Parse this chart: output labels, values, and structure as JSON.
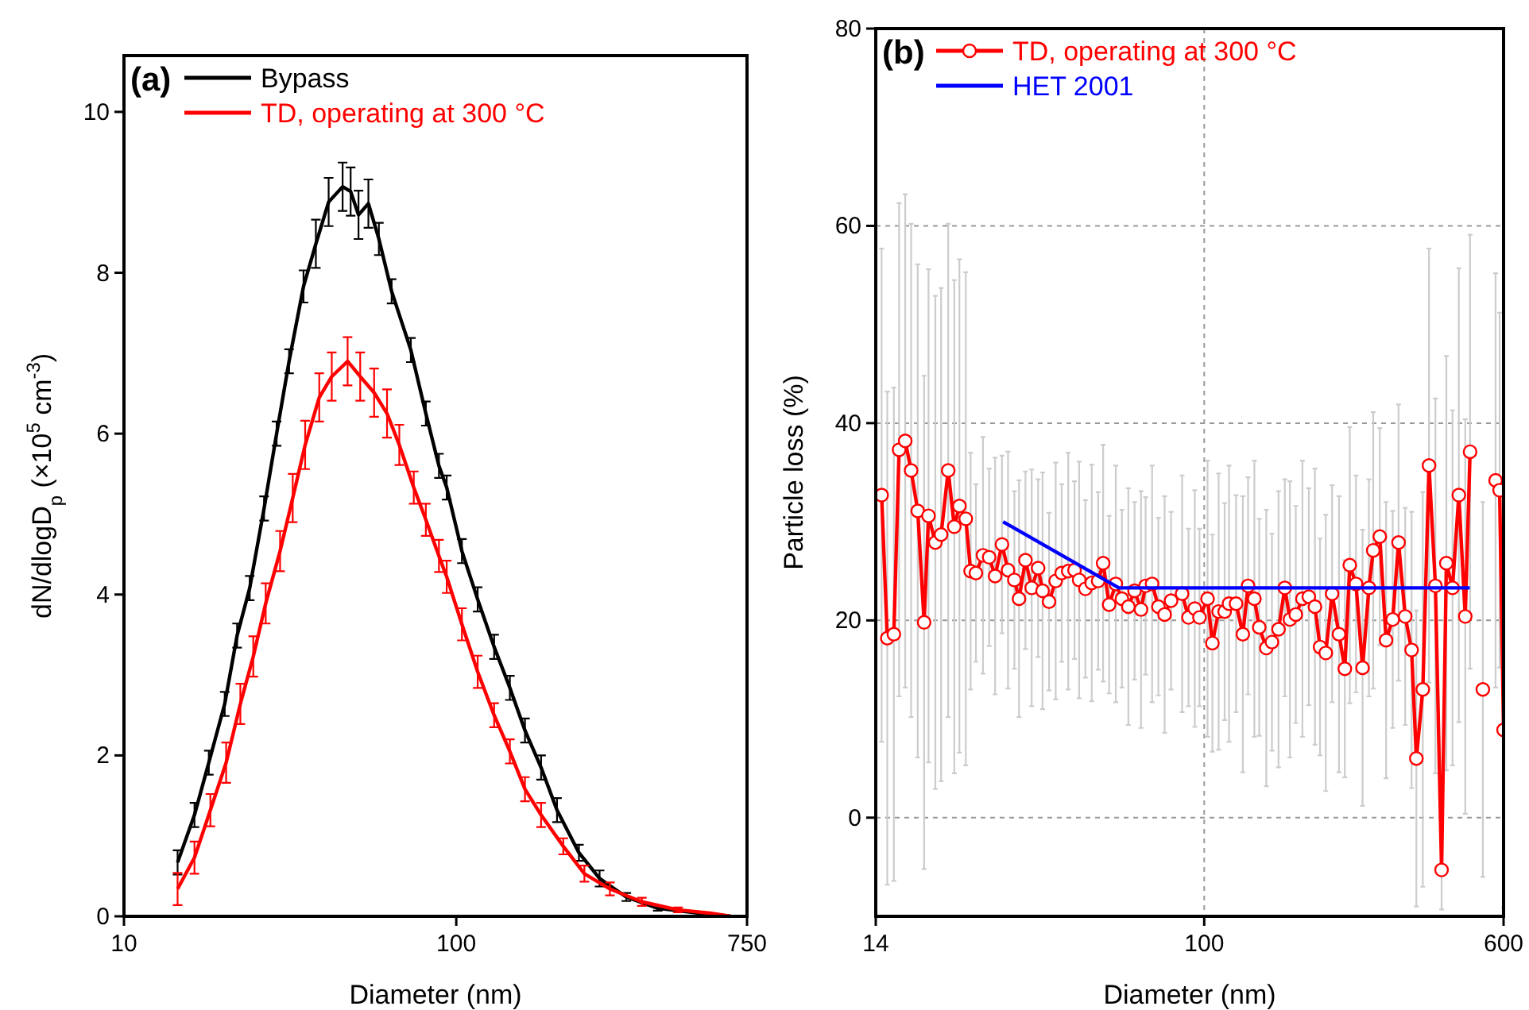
{
  "chart_data": [
    {
      "type": "line",
      "xlabel": "Diameter (nm)",
      "ylabel": "dN/dlogD$_{p}$ (×10$^{5}$ cm$^{-3}$)",
      "log": "x",
      "xlim": [
        10,
        750
      ],
      "xticks": [
        10,
        100,
        750
      ],
      "ylim": [
        0,
        10.7
      ],
      "yticks": [
        0,
        2,
        4,
        6,
        8,
        10
      ],
      "legend": "top left",
      "annotations": [
        "(a)"
      ],
      "series": [
        {
          "name": "Bypass",
          "color": "#000000",
          "x": [
            14.5,
            16.3,
            18,
            20.1,
            21.9,
            23.9,
            26.4,
            28.8,
            31.4,
            34.7,
            37.8,
            41.3,
            45.5,
            48.1,
            50.8,
            54.4,
            58.5,
            63.9,
            73,
            81,
            88.7,
            93.6,
            104,
            116,
            130,
            145,
            161,
            180,
            201,
            234,
            270,
            325,
            404,
            538,
            670
          ],
          "values": [
            0.67,
            1.26,
            1.91,
            2.64,
            3.49,
            4.08,
            5.07,
            6.0,
            6.9,
            7.83,
            8.36,
            8.88,
            9.07,
            9.01,
            8.72,
            8.86,
            8.42,
            7.77,
            7.04,
            6.25,
            5.6,
            5.33,
            4.54,
            3.94,
            3.35,
            2.84,
            2.31,
            1.85,
            1.32,
            0.79,
            0.47,
            0.24,
            0.1,
            0.04,
            0.0
          ],
          "errors": [
            0.15,
            0.15,
            0.15,
            0.15,
            0.15,
            0.15,
            0.15,
            0.15,
            0.15,
            0.2,
            0.3,
            0.3,
            0.3,
            0.3,
            0.3,
            0.3,
            0.2,
            0.15,
            0.15,
            0.15,
            0.15,
            0.15,
            0.15,
            0.15,
            0.15,
            0.15,
            0.15,
            0.15,
            0.15,
            0.1,
            0.1,
            0.05,
            0.03,
            null,
            null
          ]
        },
        {
          "name": "TD, operating at 300 °C",
          "color": "#ff0000",
          "x": [
            14.5,
            16.3,
            18.2,
            20.3,
            22.4,
            24.5,
            26.7,
            29.5,
            32.2,
            35.1,
            38.7,
            42.2,
            47.1,
            51.4,
            56.6,
            61.9,
            67.4,
            74.5,
            81,
            88.7,
            93.6,
            104,
            116,
            130,
            145,
            161,
            180,
            210,
            243,
            290,
            362,
            465,
            580,
            670
          ],
          "values": [
            0.34,
            0.73,
            1.32,
            1.91,
            2.64,
            3.23,
            3.89,
            4.54,
            5.2,
            5.86,
            6.45,
            6.71,
            6.9,
            6.71,
            6.51,
            6.25,
            5.86,
            5.33,
            4.93,
            4.48,
            4.22,
            3.63,
            3.04,
            2.5,
            2.05,
            1.58,
            1.26,
            0.87,
            0.53,
            0.34,
            0.18,
            0.08,
            0.04,
            0.0
          ],
          "errors": [
            0.2,
            0.2,
            0.2,
            0.25,
            0.25,
            0.25,
            0.25,
            0.25,
            0.3,
            0.3,
            0.3,
            0.3,
            0.3,
            0.3,
            0.3,
            0.3,
            0.25,
            0.2,
            0.2,
            0.2,
            0.2,
            0.2,
            0.2,
            0.15,
            0.15,
            0.15,
            0.15,
            0.1,
            0.1,
            0.08,
            0.05,
            0.03,
            null,
            null
          ]
        }
      ]
    },
    {
      "type": "line",
      "xlabel": "Diameter (nm)",
      "ylabel": "Particle loss (%)",
      "log": "x",
      "xlim": [
        14,
        600
      ],
      "xticks": [
        14,
        100,
        600
      ],
      "ylim": [
        -10,
        80
      ],
      "yticks": [
        0,
        20,
        40,
        60,
        80
      ],
      "grid": true,
      "legend": "top left",
      "marker": "circle",
      "annotations": [
        "(b)"
      ],
      "series": [
        {
          "name": "TD, operating at 300 °C",
          "color": "#ff0000",
          "x": [
            14.5,
            15.0,
            15.6,
            16.1,
            16.7,
            17.3,
            18.0,
            18.7,
            19.2,
            20.0,
            20.7,
            21.6,
            22.4,
            23.1,
            24.0,
            24.7,
            25.5,
            26.6,
            27.6,
            28.6,
            29.8,
            30.9,
            32.1,
            33.0,
            34.3,
            35.6,
            37.0,
            38.0,
            39.5,
            41.1,
            42.6,
            44.3,
            46.0,
            47.3,
            49.1,
            51.0,
            53.0,
            54.6,
            56.6,
            58.9,
            61.1,
            63.5,
            65.9,
            68.5,
            70.4,
            73.2,
            76.0,
            78.9,
            82.0,
            87.6,
            91,
            94.5,
            97.2,
            102,
            105,
            109,
            113,
            116,
            121,
            126,
            130,
            135,
            139,
            145,
            150,
            156,
            162,
            167,
            173,
            180,
            187,
            194,
            200,
            207,
            215,
            224,
            232,
            239,
            248,
            258,
            268,
            275,
            286,
            297,
            309,
            320,
            333,
            346,
            356,
            370,
            384,
            399,
            414,
            426,
            442,
            459,
            477,
            491,
            510,
            530,
            550,
            572,
            586,
            600
          ],
          "values": [
            32.7,
            18.2,
            18.6,
            37.3,
            38.2,
            35.2,
            31.1,
            19.8,
            30.6,
            27.9,
            28.7,
            35.2,
            29.5,
            31.6,
            30.3,
            25.0,
            24.8,
            26.6,
            26.4,
            24.5,
            27.7,
            25.1,
            24.1,
            22.2,
            26.1,
            23.3,
            25.3,
            23.0,
            21.9,
            24.0,
            24.8,
            25.0,
            25.1,
            24.1,
            23.2,
            23.8,
            24.0,
            25.8,
            21.6,
            23.7,
            22.2,
            21.4,
            23.0,
            21.1,
            23.5,
            23.7,
            21.4,
            20.6,
            22.0,
            22.7,
            20.3,
            21.2,
            20.3,
            22.2,
            17.7,
            20.9,
            20.9,
            21.7,
            21.7,
            18.6,
            23.5,
            22.2,
            19.3,
            17.2,
            17.8,
            19.1,
            23.3,
            20.1,
            20.6,
            22.2,
            22.4,
            21.4,
            17.3,
            16.7,
            22.7,
            18.6,
            15.1,
            25.6,
            23.7,
            15.2,
            23.3,
            27.1,
            28.5,
            18.0,
            20.1,
            27.9,
            20.4,
            17.0,
            6.0,
            13.0,
            35.7,
            23.5,
            -5.3,
            25.8,
            23.3,
            32.7,
            20.4,
            37.1,
            null,
            13.0,
            null,
            34.2,
            33.2,
            8.9
          ],
          "errors": [
            25,
            25,
            25,
            25,
            25,
            25,
            25,
            25,
            25,
            25,
            25,
            25,
            25,
            25,
            25,
            12,
            9,
            12,
            9,
            12,
            9,
            12,
            9,
            12,
            9,
            12,
            9,
            12,
            9,
            12,
            9,
            12,
            9,
            12,
            9,
            12,
            9,
            12,
            9,
            12,
            9,
            12,
            9,
            12,
            9,
            12,
            9,
            12,
            9,
            12,
            9,
            12,
            9,
            14,
            11,
            14,
            11,
            14,
            11,
            14,
            11,
            14,
            11,
            14,
            11,
            14,
            11,
            14,
            11,
            14,
            11,
            14,
            11,
            14,
            11,
            14,
            11,
            14,
            11,
            14,
            11,
            14,
            11,
            14,
            11,
            14,
            11,
            14,
            15,
            20,
            22,
            19,
            4,
            21,
            18,
            23,
            20,
            22,
            null,
            19,
            null,
            21,
            18,
            18
          ]
        },
        {
          "name": "HET 2001",
          "color": "#0000ff",
          "marker": "none",
          "x": [
            30,
            60,
            490
          ],
          "values": [
            30,
            23.3,
            23.3
          ]
        }
      ]
    }
  ]
}
